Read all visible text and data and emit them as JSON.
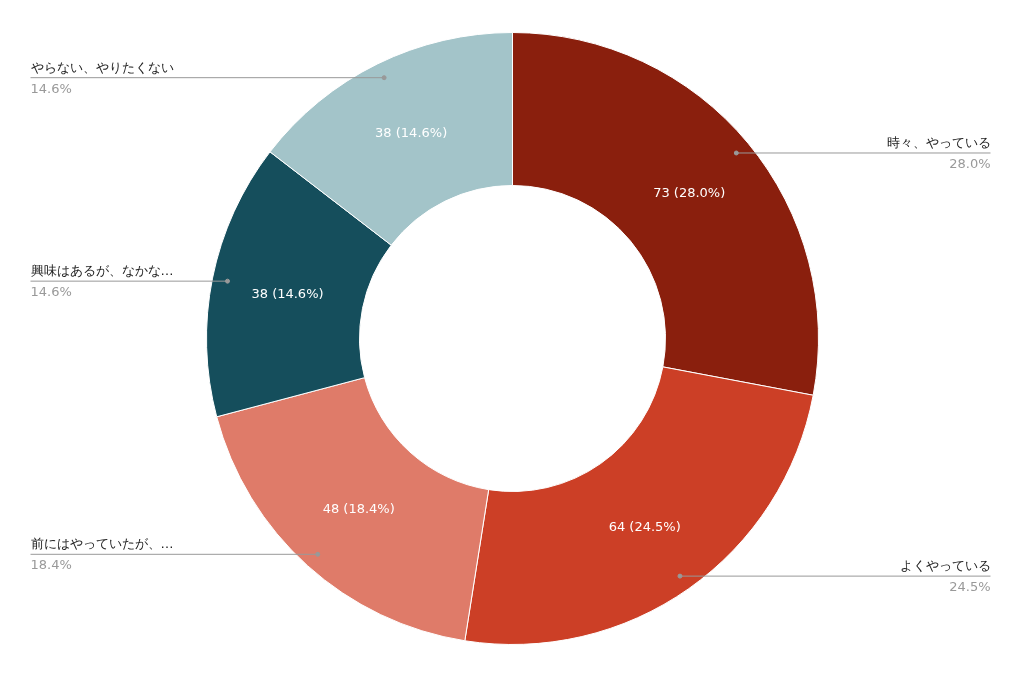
{
  "chart_data": {
    "type": "donut",
    "categories": [
      "時々、やっている",
      "よくやっている",
      "前にはやっていたが、…",
      "興味はあるが、なかな…",
      "やらない、やりたくない"
    ],
    "values": [
      73,
      64,
      48,
      38,
      38
    ],
    "colors": [
      "#8a1f0d",
      "#cc3f26",
      "#df7b69",
      "#154e5c",
      "#a3c4c9"
    ],
    "value_labels": [
      "73 (28.0%)",
      "64 (24.5%)",
      "48 (18.4%)",
      "38 (14.6%)",
      "38 (14.6%)"
    ],
    "annotations": [
      {
        "text": "28.0%",
        "x": "時々、やっている"
      },
      {
        "text": "24.5%",
        "x": "よくやっている"
      },
      {
        "text": "18.4%",
        "x": "前にはやっていたが、…"
      },
      {
        "text": "14.6%",
        "x": "興味はあるが、なかな…"
      },
      {
        "text": "14.6%",
        "x": "やらない、やりたくない"
      }
    ]
  }
}
